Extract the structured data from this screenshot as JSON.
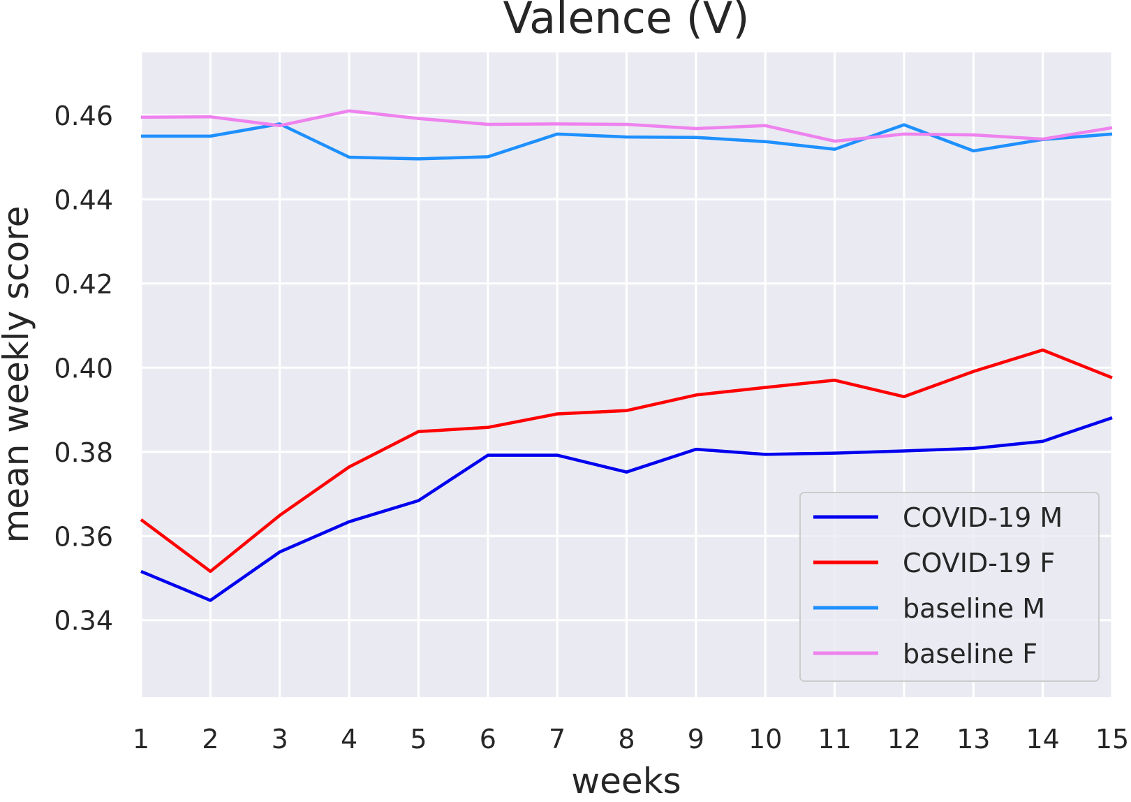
{
  "chart_data": {
    "type": "line",
    "title": "Valence (V)",
    "xlabel": "weeks",
    "ylabel": "mean weekly score",
    "x": [
      1,
      2,
      3,
      4,
      5,
      6,
      7,
      8,
      9,
      10,
      11,
      12,
      13,
      14,
      15
    ],
    "xlim": [
      1,
      15
    ],
    "ylim": [
      0.3217,
      0.4749
    ],
    "yticks": [
      0.34,
      0.36,
      0.38,
      0.4,
      0.42,
      0.44,
      0.46
    ],
    "ytick_labels": [
      "0.34",
      "0.36",
      "0.38",
      "0.40",
      "0.42",
      "0.44",
      "0.46"
    ],
    "xtick_labels": [
      "1",
      "2",
      "3",
      "4",
      "5",
      "6",
      "7",
      "8",
      "9",
      "10",
      "11",
      "12",
      "13",
      "14",
      "15"
    ],
    "grid": true,
    "legend_position": "lower-right",
    "series": [
      {
        "name": "COVID-19 M",
        "color": "#0000ee",
        "values": [
          0.3516,
          0.3447,
          0.3562,
          0.3634,
          0.3684,
          0.3792,
          0.3792,
          0.3752,
          0.3806,
          0.3794,
          0.3797,
          0.3802,
          0.3808,
          0.3825,
          0.3881
        ]
      },
      {
        "name": "COVID-19 F",
        "color": "#ff0000",
        "values": [
          0.3639,
          0.3516,
          0.3649,
          0.3764,
          0.3848,
          0.3858,
          0.389,
          0.3898,
          0.3935,
          0.3953,
          0.397,
          0.3931,
          0.3991,
          0.4042,
          0.3976
        ]
      },
      {
        "name": "baseline M",
        "color": "#1e90ff",
        "values": [
          0.455,
          0.455,
          0.4579,
          0.45,
          0.4496,
          0.4501,
          0.4555,
          0.4548,
          0.4547,
          0.4537,
          0.4519,
          0.4577,
          0.4515,
          0.4542,
          0.4555
        ]
      },
      {
        "name": "baseline F",
        "color": "#ee82ee",
        "values": [
          0.4595,
          0.4596,
          0.4575,
          0.461,
          0.4592,
          0.4578,
          0.4579,
          0.4578,
          0.4568,
          0.4575,
          0.4538,
          0.4555,
          0.4553,
          0.4543,
          0.457
        ]
      }
    ]
  }
}
